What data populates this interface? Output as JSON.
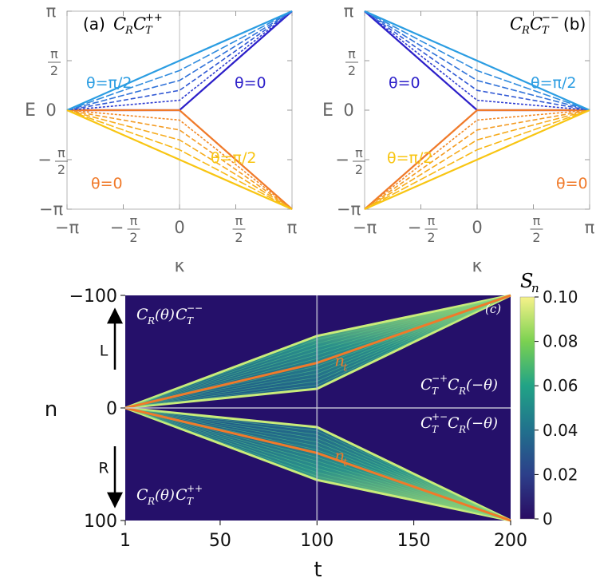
{
  "chart_data": [
    {
      "type": "line",
      "panel": "(a)",
      "title": "C_R C_T^{++}",
      "title_main": "C",
      "title_sub1": "R",
      "title_c2": "C",
      "title_sub2": "T",
      "title_sup2": "++",
      "xlabel": "κ",
      "ylabel": "E",
      "xlim": [
        -3.1416,
        3.1416
      ],
      "ylim": [
        -3.1416,
        3.1416
      ],
      "xticks": [
        {
          "v": -3.1416,
          "label": "−π"
        },
        {
          "v": -1.5708,
          "label": "−π/2"
        },
        {
          "v": 0,
          "label": "0"
        },
        {
          "v": 1.5708,
          "label": "π/2"
        },
        {
          "v": 3.1416,
          "label": "π"
        }
      ],
      "yticks": [
        {
          "v": 3.1416,
          "label": "π"
        },
        {
          "v": 1.5708,
          "label": "π/2"
        },
        {
          "v": 0,
          "label": "0"
        },
        {
          "v": -1.5708,
          "label": "−π/2"
        },
        {
          "v": -3.1416,
          "label": "−π"
        }
      ],
      "mirror": false,
      "theta_fractions": [
        0,
        0.2,
        0.4,
        0.6,
        0.8,
        1.0
      ],
      "annotations": [
        {
          "text": "θ=π/2",
          "color": "#2b9de2"
        },
        {
          "text": "θ=0",
          "color": "#2c1fc9"
        },
        {
          "text": "θ=0",
          "color": "#f07a2a"
        },
        {
          "text": "θ=π/2",
          "color": "#f8c512"
        }
      ]
    },
    {
      "type": "line",
      "panel": "(b)",
      "title": "C_R C_T^{--}",
      "title_main": "C",
      "title_sub1": "R",
      "title_c2": "C",
      "title_sub2": "T",
      "title_sup2": "−−",
      "xlabel": "κ",
      "ylabel": "E",
      "xlim": [
        -3.1416,
        3.1416
      ],
      "ylim": [
        -3.1416,
        3.1416
      ],
      "xticks": [
        {
          "v": -3.1416,
          "label": "−π"
        },
        {
          "v": -1.5708,
          "label": "−π/2"
        },
        {
          "v": 0,
          "label": "0"
        },
        {
          "v": 1.5708,
          "label": "π/2"
        },
        {
          "v": 3.1416,
          "label": "π"
        }
      ],
      "yticks": [
        {
          "v": 3.1416,
          "label": "π"
        },
        {
          "v": 1.5708,
          "label": "π/2"
        },
        {
          "v": 0,
          "label": "0"
        },
        {
          "v": -1.5708,
          "label": "−π/2"
        },
        {
          "v": -3.1416,
          "label": "−π"
        }
      ],
      "mirror": true,
      "theta_fractions": [
        0,
        0.2,
        0.4,
        0.6,
        0.8,
        1.0
      ],
      "annotations": [
        {
          "text": "θ=0",
          "color": "#2c1fc9"
        },
        {
          "text": "θ=π/2",
          "color": "#2b9de2"
        },
        {
          "text": "θ=π/2",
          "color": "#f8c512"
        },
        {
          "text": "θ=0",
          "color": "#f07a2a"
        }
      ]
    },
    {
      "type": "heatmap",
      "panel": "(c)",
      "xlabel": "t",
      "ylabel": "n",
      "colorbar_label": "S_n",
      "xlim": [
        1,
        200
      ],
      "ylim": [
        -100,
        100
      ],
      "xticks": [
        1,
        50,
        100,
        150,
        200
      ],
      "yticks": [
        {
          "v": -100,
          "label": "−100"
        },
        {
          "v": 0,
          "label": "0"
        },
        {
          "v": 100,
          "label": "100"
        }
      ],
      "colorbar_range": [
        0,
        0.1
      ],
      "colorbar_ticks": [
        "0.10",
        "0.08",
        "0.06",
        "0.04",
        "0.02",
        "0"
      ],
      "colorbar_values": [
        0.1,
        0.08,
        0.06,
        0.04,
        0.02,
        0
      ],
      "colors": [
        "#440154",
        "#31688e",
        "#21918c",
        "#35b779",
        "#90d743",
        "#fde725"
      ],
      "arrow_labels": [
        "L",
        "R"
      ],
      "upper_wedge": {
        "t": [
          1,
          100,
          200
        ],
        "n_outer": [
          0,
          -64,
          -100
        ],
        "n_inner": [
          0,
          -17,
          -100
        ],
        "nt": [
          0,
          -40,
          -100
        ]
      },
      "lower_wedge": {
        "t": [
          1,
          100,
          200
        ],
        "n_outer": [
          0,
          64,
          100
        ],
        "n_inner": [
          0,
          17,
          100
        ],
        "nt": [
          0,
          40,
          100
        ]
      },
      "line_label": "n_t",
      "region_labels": [
        {
          "pre": "C",
          "sub": "R",
          "arg": "(θ)",
          "c2": "C",
          "sub2": "T",
          "sup2": "−−"
        },
        {
          "pre": "C",
          "sub": "T",
          "sup": "−+",
          "c2": "C",
          "sub2": "R",
          "arg2": "(−θ)"
        },
        {
          "pre": "C",
          "sub": "T",
          "sup": "+−",
          "c2": "C",
          "sub2": "R",
          "arg2": "(−θ)"
        },
        {
          "pre": "C",
          "sub": "R",
          "arg": "(θ)",
          "c2": "C",
          "sub2": "T",
          "sup2": "++"
        }
      ]
    }
  ]
}
